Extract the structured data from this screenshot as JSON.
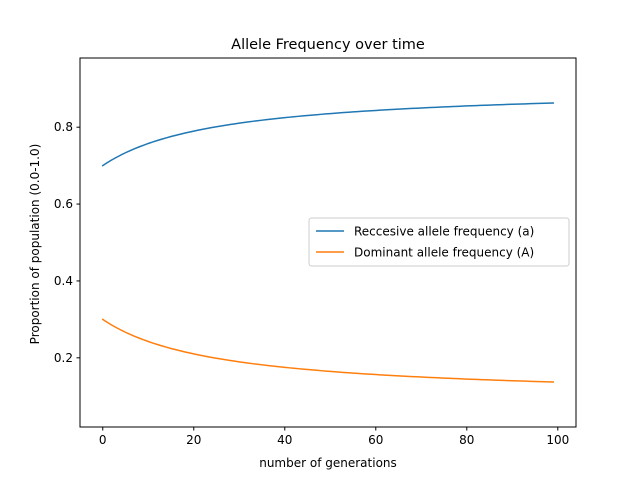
{
  "chart_data": {
    "type": "line",
    "title": "Allele Frequency over time",
    "xlabel": "number of generations",
    "ylabel": "Proportion of population (0.0-1.0)",
    "xlim": [
      -5,
      104
    ],
    "ylim": [
      0.02,
      0.98
    ],
    "xticks": [
      0,
      20,
      40,
      60,
      80,
      100
    ],
    "yticks": [
      0.2,
      0.4,
      0.6,
      0.8
    ],
    "ytick_labels": [
      "0.2",
      "0.4",
      "0.6",
      "0.8"
    ],
    "grid": false,
    "legend_position": "center-right",
    "x": [
      0,
      1,
      2,
      3,
      4,
      5,
      6,
      7,
      8,
      9,
      10,
      11,
      12,
      13,
      14,
      15,
      16,
      17,
      18,
      19,
      20,
      21,
      22,
      23,
      24,
      25,
      26,
      27,
      28,
      29,
      30,
      31,
      32,
      33,
      34,
      35,
      36,
      37,
      38,
      39,
      40,
      41,
      42,
      43,
      44,
      45,
      46,
      47,
      48,
      49,
      50,
      51,
      52,
      53,
      54,
      55,
      56,
      57,
      58,
      59,
      60,
      61,
      62,
      63,
      64,
      65,
      66,
      67,
      68,
      69,
      70,
      71,
      72,
      73,
      74,
      75,
      76,
      77,
      78,
      79,
      80,
      81,
      82,
      83,
      84,
      85,
      86,
      87,
      88,
      89,
      90,
      91,
      92,
      93,
      94,
      95,
      96,
      97,
      98,
      99
    ],
    "series": [
      {
        "name": "Reccesive allele frequency (a)",
        "color": "#1f77b4",
        "values": [
          0.7,
          0.7077,
          0.7149,
          0.7215,
          0.7277,
          0.7335,
          0.7389,
          0.744,
          0.7488,
          0.7533,
          0.7576,
          0.7616,
          0.7654,
          0.769,
          0.7724,
          0.7757,
          0.7788,
          0.7817,
          0.7846,
          0.7872,
          0.7898,
          0.7923,
          0.7946,
          0.7969,
          0.7991,
          0.8011,
          0.8032,
          0.8051,
          0.8069,
          0.8087,
          0.8105,
          0.8121,
          0.8137,
          0.8153,
          0.8168,
          0.8182,
          0.8196,
          0.821,
          0.8223,
          0.8236,
          0.8248,
          0.826,
          0.8272,
          0.8283,
          0.8294,
          0.8305,
          0.8315,
          0.8325,
          0.8335,
          0.8345,
          0.8354,
          0.8363,
          0.8372,
          0.8381,
          0.8389,
          0.8397,
          0.8405,
          0.8413,
          0.8421,
          0.8428,
          0.8435,
          0.8443,
          0.845,
          0.8456,
          0.8463,
          0.847,
          0.8476,
          0.8482,
          0.8488,
          0.8494,
          0.85,
          0.8506,
          0.8511,
          0.8517,
          0.8522,
          0.8528,
          0.8533,
          0.8538,
          0.8543,
          0.8548,
          0.8553,
          0.8557,
          0.8562,
          0.8567,
          0.8571,
          0.8575,
          0.858,
          0.8584,
          0.8588,
          0.8592,
          0.8596,
          0.86,
          0.8604,
          0.8608,
          0.8612,
          0.8615,
          0.8619,
          0.8623,
          0.8626,
          0.863
        ]
      },
      {
        "name": "Dominant allele frequency (A)",
        "color": "#ff7f0e",
        "values": [
          0.3,
          0.2923,
          0.2851,
          0.2785,
          0.2723,
          0.2665,
          0.2611,
          0.256,
          0.2512,
          0.2467,
          0.2424,
          0.2384,
          0.2346,
          0.231,
          0.2276,
          0.2243,
          0.2212,
          0.2183,
          0.2154,
          0.2128,
          0.2102,
          0.2077,
          0.2054,
          0.2031,
          0.2009,
          0.1989,
          0.1968,
          0.1949,
          0.1931,
          0.1913,
          0.1895,
          0.1879,
          0.1863,
          0.1847,
          0.1832,
          0.1818,
          0.1804,
          0.179,
          0.1777,
          0.1764,
          0.1752,
          0.174,
          0.1728,
          0.1717,
          0.1706,
          0.1695,
          0.1685,
          0.1675,
          0.1665,
          0.1655,
          0.1646,
          0.1637,
          0.1628,
          0.1619,
          0.1611,
          0.1603,
          0.1595,
          0.1587,
          0.1579,
          0.1572,
          0.1565,
          0.1557,
          0.155,
          0.1544,
          0.1537,
          0.153,
          0.1524,
          0.1518,
          0.1512,
          0.1506,
          0.15,
          0.1494,
          0.1489,
          0.1483,
          0.1478,
          0.1472,
          0.1467,
          0.1462,
          0.1457,
          0.1452,
          0.1447,
          0.1443,
          0.1438,
          0.1433,
          0.1429,
          0.1425,
          0.142,
          0.1416,
          0.1412,
          0.1408,
          0.1404,
          0.14,
          0.1396,
          0.1392,
          0.1388,
          0.1385,
          0.1381,
          0.1377,
          0.1374,
          0.137
        ]
      }
    ]
  }
}
